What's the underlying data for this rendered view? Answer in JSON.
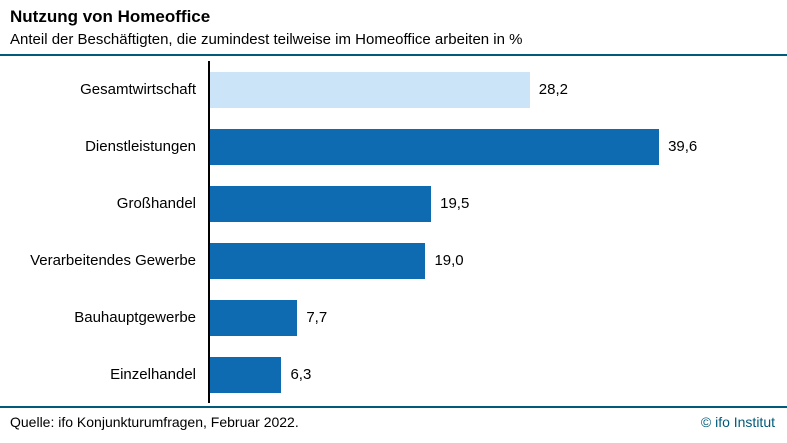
{
  "header": {
    "title": "Nutzung von Homeoffice",
    "subtitle": "Anteil der Beschäftigten, die zumindest teilweise im Homeoffice arbeiten in %"
  },
  "footer": {
    "source": "Quelle: ifo Konjunkturumfragen, Februar 2022.",
    "copyright": "© ifo Institut"
  },
  "colors": {
    "bar_default": "#0e6bb2",
    "bar_highlight": "#cce4f8",
    "rule": "#005a7a",
    "axis": "#000000"
  },
  "chart_data": {
    "type": "bar",
    "orientation": "horizontal",
    "title": "Nutzung von Homeoffice",
    "subtitle": "Anteil der Beschäftigten, die zumindest teilweise im Homeoffice arbeiten in %",
    "categories": [
      "Gesamtwirtschaft",
      "Dienstleistungen",
      "Großhandel",
      "Verarbeitendes Gewerbe",
      "Bauhauptgewerbe",
      "Einzelhandel"
    ],
    "values": [
      28.2,
      39.6,
      19.5,
      19.0,
      7.7,
      6.3
    ],
    "value_labels": [
      "28,2",
      "39,6",
      "19,5",
      "19,0",
      "7,7",
      "6,3"
    ],
    "xlim": [
      0,
      50
    ],
    "highlight_index": 0,
    "grid": false,
    "legend": false,
    "source": "Quelle: ifo Konjunkturumfragen, Februar 2022."
  }
}
